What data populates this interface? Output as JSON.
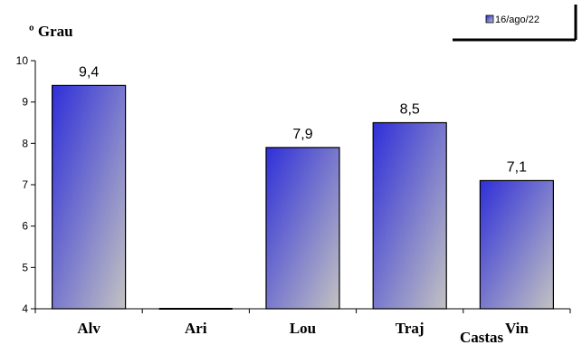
{
  "chart_data": {
    "type": "bar",
    "ylabel": "º Grau",
    "xlabel": "Castas",
    "categories": [
      "Alv",
      "Ari",
      "Lou",
      "Traj",
      "Vin"
    ],
    "series": [
      {
        "name": "16/ago/22",
        "values": [
          9.4,
          null,
          7.9,
          8.5,
          7.1
        ],
        "labels": [
          "9,4",
          "",
          "7,9",
          "8,5",
          "7,1"
        ]
      }
    ],
    "ylim": [
      4,
      10
    ],
    "yticks": [
      "4",
      "5",
      "6",
      "7",
      "8",
      "9",
      "10"
    ],
    "grid": false,
    "legend": "top-right",
    "colors": {
      "bar_top": "#2f2fd9",
      "bar_bottom": "#c2c2c2",
      "axis": "#000000"
    }
  }
}
